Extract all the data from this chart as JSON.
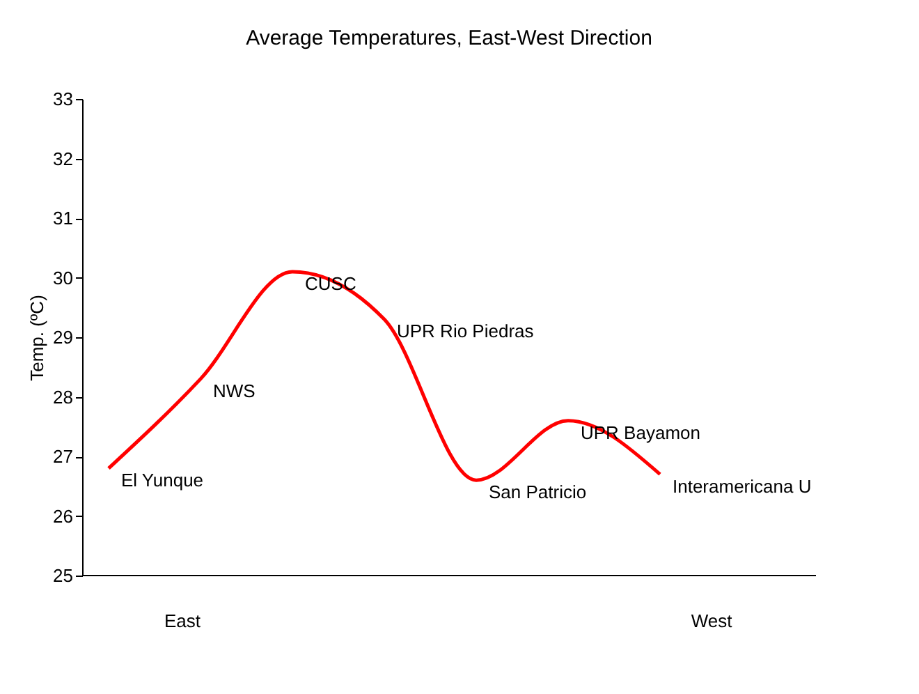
{
  "chart_data": {
    "type": "line",
    "title": "Average Temperatures, East-West Direction",
    "ylabel": "Temp. (ºC)",
    "categories": [
      null,
      null,
      null,
      null,
      null,
      null,
      null
    ],
    "series": [
      {
        "color": "#ff0000",
        "values": [
          26.8,
          28.3,
          30.1,
          29.3,
          26.6,
          27.6,
          26.7
        ]
      }
    ],
    "ylim": [
      25,
      33
    ],
    "yticks": [
      25,
      26,
      27,
      28,
      29,
      30,
      31,
      32,
      33
    ],
    "grid": false,
    "marker": "none",
    "line_style": "solid",
    "tick_labels": "y",
    "annotations": [
      "El Yunque",
      "NWS",
      "CUSC",
      "UPR Rio Piedras",
      "San Patricio",
      "UPR Bayamon",
      "Interamericana U",
      "East",
      "West"
    ]
  }
}
